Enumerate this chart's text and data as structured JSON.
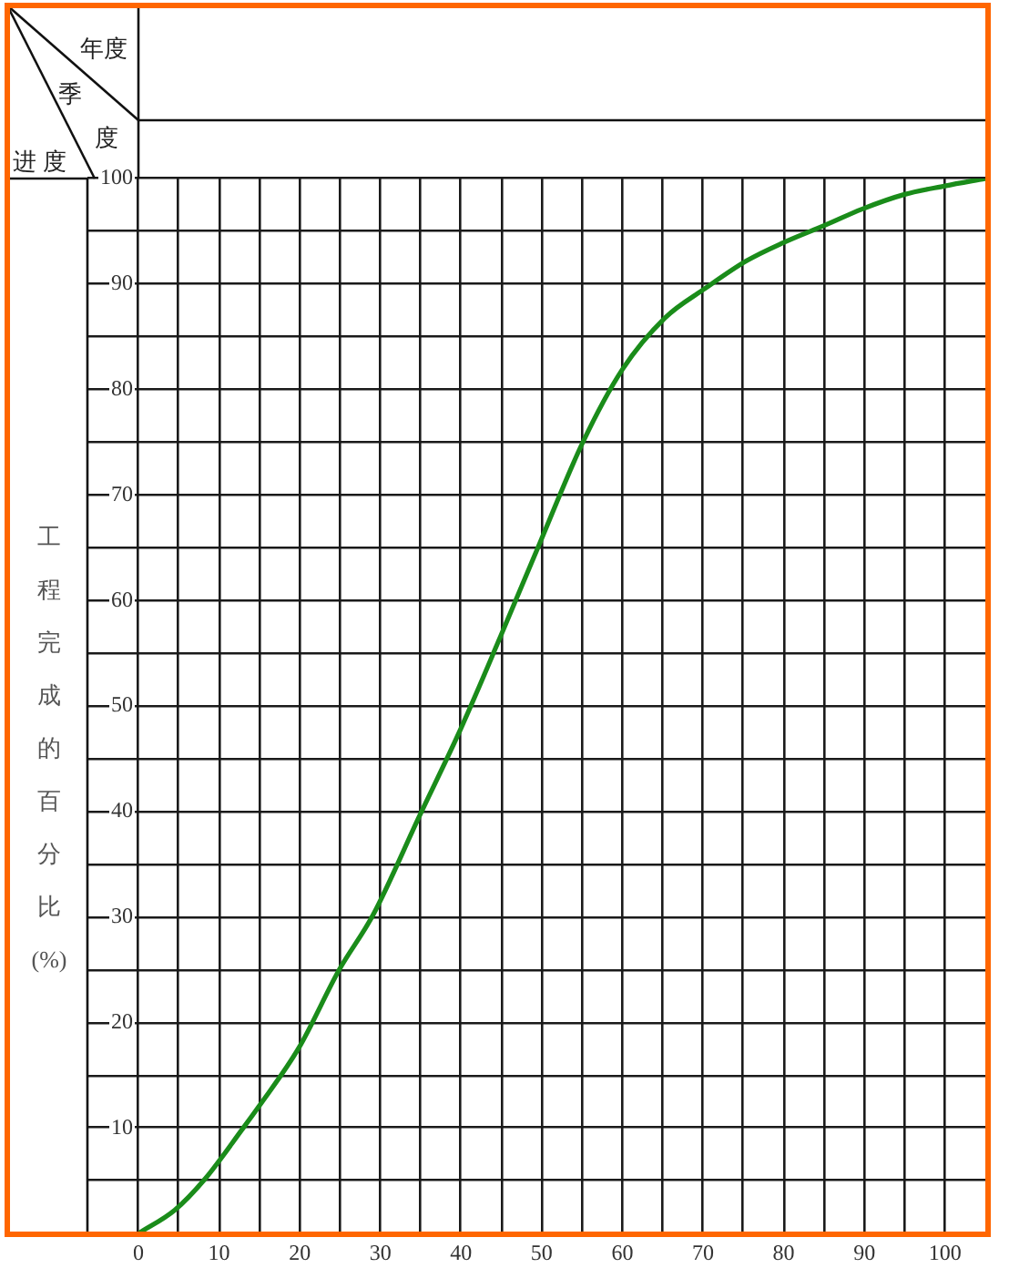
{
  "chart_data": {
    "type": "line",
    "ylabel": "工程完成的百分比(%)",
    "annotations": [
      "年度",
      "季度",
      "进 度"
    ],
    "x": [
      0,
      4.5,
      8.3,
      12.9,
      14.9,
      19.9,
      24.9,
      29.1,
      34.8,
      40,
      44.9,
      49.8,
      55.1,
      60,
      65.3,
      70.3,
      75.4,
      79.9,
      85.2,
      89.7,
      95,
      100,
      105
    ],
    "values": [
      0,
      2.2,
      5.2,
      9.9,
      12,
      17.6,
      25,
      30.2,
      39.5,
      47.9,
      56.6,
      65.5,
      75,
      81.9,
      86.8,
      89.6,
      92.2,
      93.9,
      95.6,
      97.1,
      98.5,
      99.3,
      100
    ],
    "color": "#1a8c1a",
    "line_style": "solid",
    "xlim": [
      0,
      105
    ],
    "xticks": [
      0,
      {
        "value": 5,
        "label": null
      },
      10,
      {
        "value": 15,
        "label": null
      },
      20,
      {
        "value": 25,
        "label": null
      },
      30,
      {
        "value": 35,
        "label": null
      },
      40,
      {
        "value": 45,
        "label": null
      },
      50,
      {
        "value": 55,
        "label": null
      },
      60,
      {
        "value": 65,
        "label": null
      },
      70,
      {
        "value": 75,
        "label": null
      },
      80,
      {
        "value": 85,
        "label": null
      },
      90,
      {
        "value": 95,
        "label": null
      },
      100
    ],
    "ylim": [
      0,
      100
    ],
    "yticks": [
      {
        "value": 5,
        "label": null
      },
      10,
      {
        "value": 15,
        "label": null
      },
      20,
      {
        "value": 25,
        "label": null
      },
      30,
      {
        "value": 35,
        "label": null
      },
      40,
      {
        "value": 45,
        "label": null
      },
      50,
      {
        "value": 55,
        "label": null
      },
      60,
      {
        "value": 65,
        "label": null
      },
      70,
      {
        "value": 75,
        "label": null
      },
      80,
      {
        "value": 85,
        "label": null
      },
      90,
      {
        "value": 95,
        "label": null
      },
      100
    ],
    "grid": true
  }
}
